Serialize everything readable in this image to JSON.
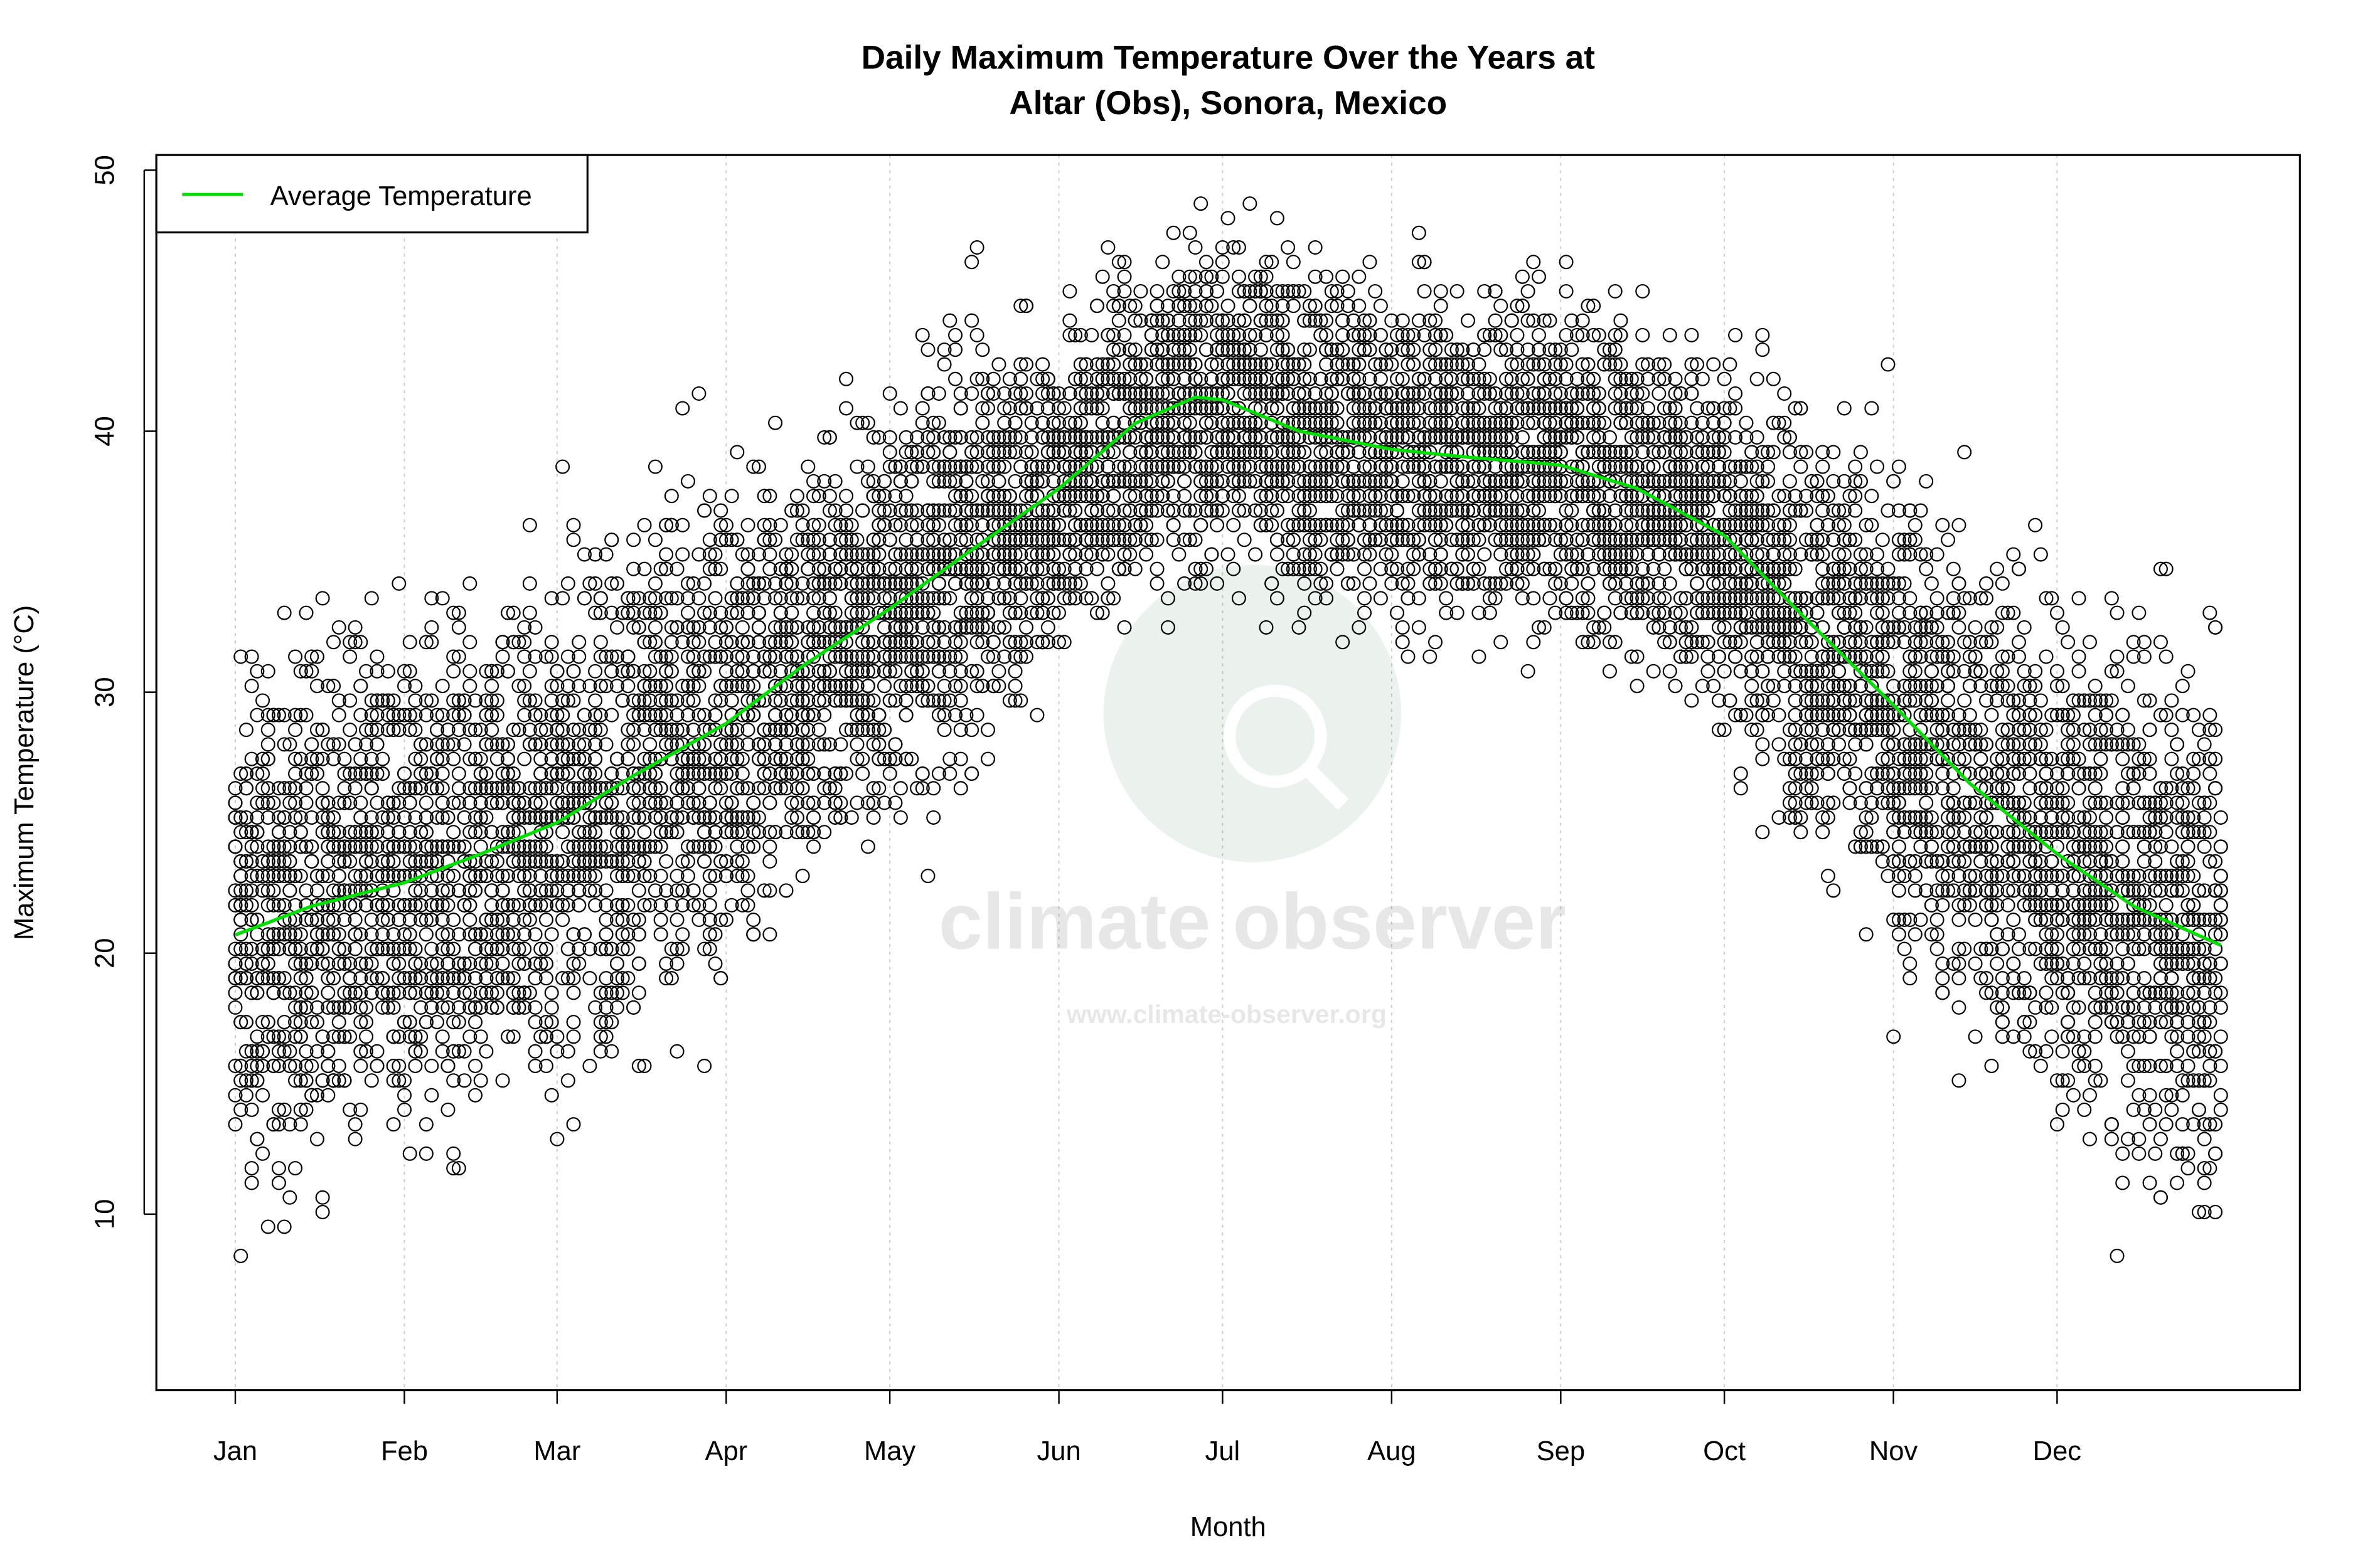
{
  "chart_data": {
    "type": "scatter",
    "title_line1": "Daily Maximum Temperature Over the Years at",
    "title_line2": "Altar (Obs), Sonora, Mexico",
    "xlabel": "Month",
    "ylabel": "Maximum Temperature (°C)",
    "x_ticks": [
      "Jan",
      "Feb",
      "Mar",
      "Apr",
      "May",
      "Jun",
      "Jul",
      "Aug",
      "Sep",
      "Oct",
      "Nov",
      "Dec"
    ],
    "x_tick_days": [
      1,
      32,
      60,
      91,
      121,
      152,
      182,
      213,
      244,
      274,
      305,
      335
    ],
    "y_ticks": [
      10,
      20,
      30,
      40,
      50
    ],
    "ylim": [
      3.5,
      50.5
    ],
    "grid": "vertical dotted at month ticks",
    "legend": {
      "position": "top-left",
      "entries": [
        {
          "label": "Average Temperature",
          "color": "#00e000"
        }
      ]
    },
    "points_color": "#000000",
    "average_series": {
      "name": "Average Temperature",
      "day": [
        1,
        15,
        32,
        46,
        60,
        74,
        91,
        105,
        121,
        135,
        152,
        166,
        177,
        182,
        196,
        213,
        227,
        244,
        258,
        274,
        288,
        305,
        319,
        335,
        349,
        365
      ],
      "temp": [
        20.7,
        21.8,
        22.7,
        23.8,
        25.0,
        26.8,
        28.8,
        31.0,
        33.2,
        35.3,
        37.8,
        40.3,
        41.3,
        41.2,
        40.0,
        39.3,
        39.0,
        38.7,
        37.8,
        36.0,
        33.0,
        29.5,
        26.5,
        23.8,
        21.8,
        20.3
      ]
    },
    "observed_range": {
      "min": 5.0,
      "max": 48.8
    }
  },
  "watermark": {
    "name": "climate observer",
    "url": "www.climate-observer.org"
  }
}
